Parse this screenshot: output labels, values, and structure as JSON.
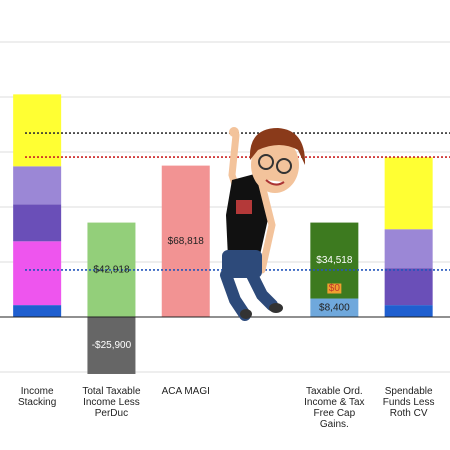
{
  "chart_data": {
    "type": "stacked_bar",
    "categories": [
      "Income Stacking",
      "Total Taxable Income Less PerDuc",
      "ACA MAGI",
      null,
      "Taxable Ord. Income & Tax Free Cap Gains.",
      "Spendable Funds Less Roth CV"
    ],
    "series": [
      {
        "color": "#1f5fd0",
        "values": [
          5400,
          null,
          null,
          null,
          null,
          5400
        ]
      },
      {
        "color": "#ee55ee",
        "values": [
          29000,
          null,
          null,
          null,
          null,
          null
        ]
      },
      {
        "color": "#6a4fb8",
        "values": [
          16800,
          null,
          null,
          null,
          null,
          16800
        ]
      },
      {
        "color": "#9b87d6",
        "values": [
          17300,
          null,
          null,
          null,
          null,
          17700
        ]
      },
      {
        "color": "#ffff33",
        "values": [
          32700,
          null,
          null,
          null,
          null,
          32700
        ]
      },
      {
        "color": "#93cf7a",
        "values": [
          null,
          42918,
          null,
          null,
          null,
          null
        ],
        "value_labels": [
          null,
          "$42,918",
          null,
          null,
          null,
          null
        ]
      },
      {
        "color": "#666666",
        "values": [
          null,
          -25900,
          null,
          null,
          null,
          null
        ],
        "value_labels": [
          null,
          "-$25,900",
          null,
          null,
          null,
          null
        ]
      },
      {
        "color": "#f29393",
        "values": [
          null,
          null,
          68818,
          null,
          null,
          null
        ],
        "value_labels": [
          null,
          null,
          "$68,818",
          null,
          null,
          null
        ]
      },
      {
        "color": "#6fa8dc",
        "values": [
          null,
          null,
          null,
          null,
          8400,
          null
        ],
        "value_labels": [
          null,
          null,
          null,
          null,
          "$8,400",
          null
        ]
      },
      {
        "color": "#f0a030",
        "values": [
          null,
          null,
          null,
          null,
          0,
          null
        ],
        "value_labels": [
          null,
          null,
          null,
          null,
          "$0",
          null
        ]
      },
      {
        "color": "#3d7a1f",
        "values": [
          null,
          null,
          null,
          null,
          34518,
          null
        ],
        "value_labels": [
          null,
          null,
          null,
          null,
          "$34,518",
          null
        ]
      }
    ],
    "reference_lines": [
      {
        "value": 83600,
        "color": "#333333"
      },
      {
        "value": 72700,
        "color": "#cc2222"
      },
      {
        "value": 21400,
        "color": "#2255bb"
      }
    ],
    "ylim": [
      -25000,
      125000
    ],
    "yticks": [
      -25000,
      0,
      25000,
      50000,
      75000,
      100000,
      125000
    ],
    "grid": true
  }
}
